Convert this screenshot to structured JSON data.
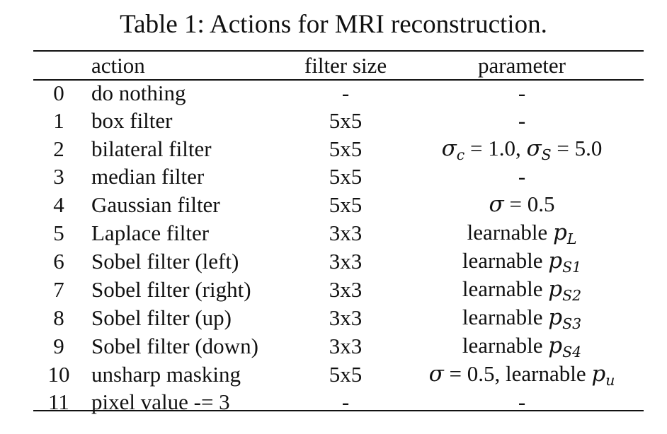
{
  "caption": "Table 1: Actions for MRI reconstruction.",
  "table": {
    "headers": {
      "index": "",
      "action": "action",
      "filter_size": "filter size",
      "parameter": "parameter"
    },
    "rows": [
      {
        "index": "0",
        "action": "do nothing",
        "filter_size": "-",
        "parameter": "-"
      },
      {
        "index": "1",
        "action": "box filter",
        "filter_size": "5x5",
        "parameter": "-"
      },
      {
        "index": "2",
        "action": "bilateral filter",
        "filter_size": "5x5",
        "parameter": "σc = 1.0, σS = 5.0"
      },
      {
        "index": "3",
        "action": "median filter",
        "filter_size": "5x5",
        "parameter": "-"
      },
      {
        "index": "4",
        "action": "Gaussian filter",
        "filter_size": "5x5",
        "parameter": "σ = 0.5"
      },
      {
        "index": "5",
        "action": "Laplace filter",
        "filter_size": "3x3",
        "parameter": "learnable pL"
      },
      {
        "index": "6",
        "action": "Sobel filter (left)",
        "filter_size": "3x3",
        "parameter": "learnable pS1"
      },
      {
        "index": "7",
        "action": "Sobel filter (right)",
        "filter_size": "3x3",
        "parameter": "learnable pS2"
      },
      {
        "index": "8",
        "action": "Sobel filter (up)",
        "filter_size": "3x3",
        "parameter": "learnable pS3"
      },
      {
        "index": "9",
        "action": "Sobel filter (down)",
        "filter_size": "3x3",
        "parameter": "learnable pS4"
      },
      {
        "index": "10",
        "action": "unsharp masking",
        "filter_size": "5x5",
        "parameter": "σ = 0.5, learnable pu"
      },
      {
        "index": "11",
        "action": "pixel value -= 3",
        "filter_size": "-",
        "parameter": "-"
      }
    ]
  }
}
